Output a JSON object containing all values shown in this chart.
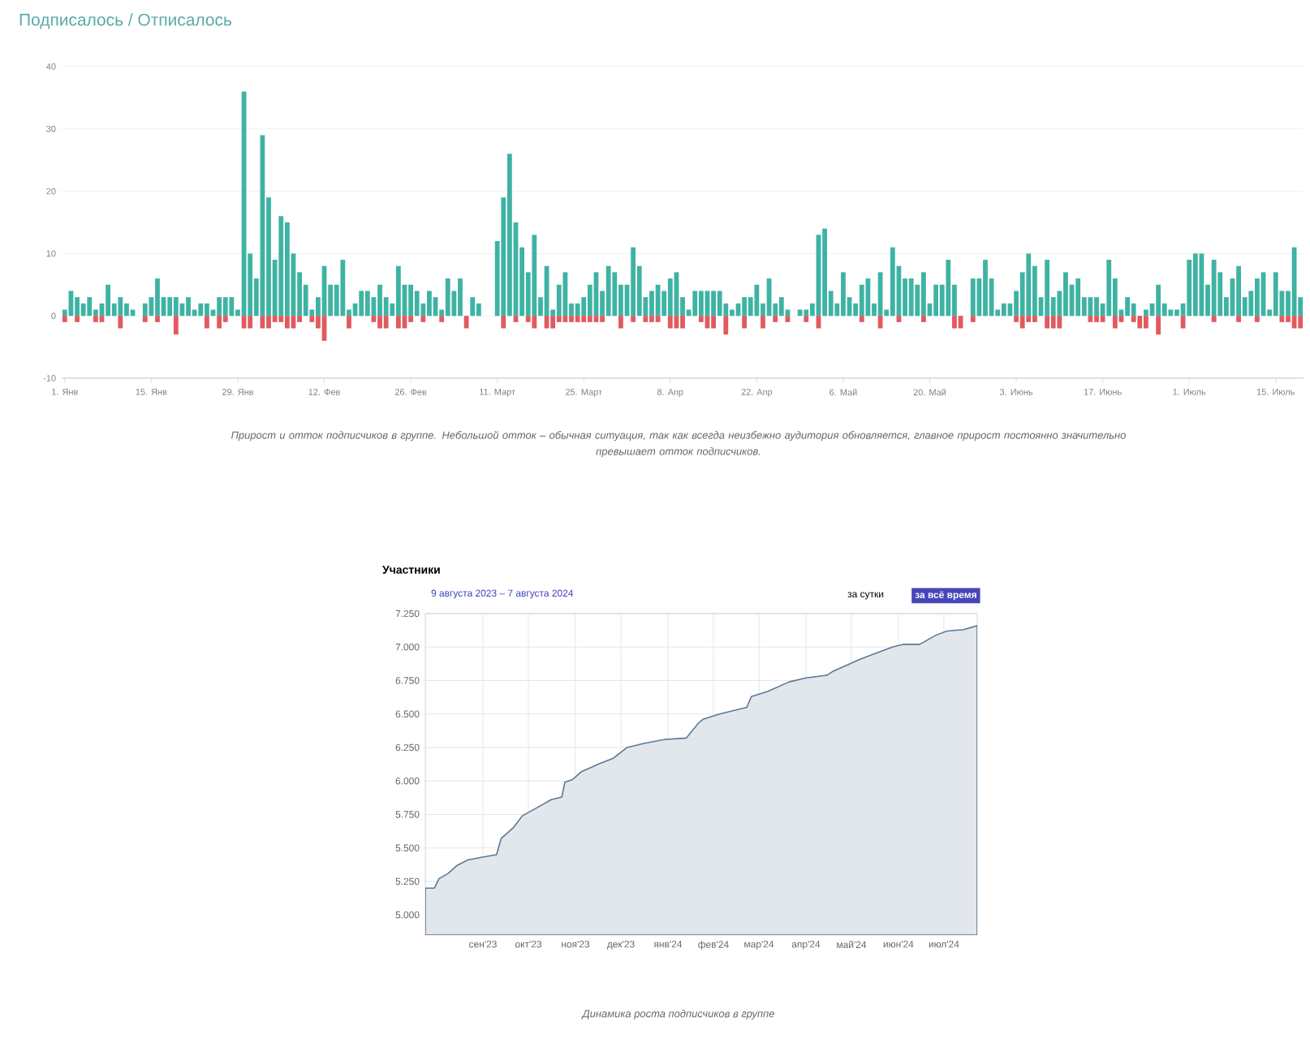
{
  "chart_data": [
    {
      "type": "bar",
      "title": "Подписалось / Отписалось",
      "categories": [
        "1. Янв",
        null,
        null,
        null,
        null,
        null,
        null,
        null,
        null,
        null,
        null,
        null,
        null,
        null,
        "15. Янв",
        null,
        null,
        null,
        null,
        null,
        null,
        null,
        null,
        null,
        null,
        null,
        null,
        null,
        "29. Янв",
        null,
        null,
        null,
        null,
        null,
        null,
        null,
        null,
        null,
        null,
        null,
        null,
        null,
        "12. Фев",
        null,
        null,
        null,
        null,
        null,
        null,
        null,
        null,
        null,
        null,
        null,
        null,
        null,
        "26. Фев",
        null,
        null,
        null,
        null,
        null,
        null,
        null,
        null,
        null,
        null,
        null,
        null,
        null,
        "11. Март",
        null,
        null,
        null,
        null,
        null,
        null,
        null,
        null,
        null,
        null,
        null,
        null,
        null,
        "25. Март",
        null,
        null,
        null,
        null,
        null,
        null,
        null,
        null,
        null,
        null,
        null,
        null,
        null,
        "8. Апр",
        null,
        null,
        null,
        null,
        null,
        null,
        null,
        null,
        null,
        null,
        null,
        null,
        null,
        "22. Апр",
        null,
        null,
        null,
        null,
        null,
        null,
        null,
        null,
        null,
        null,
        null,
        null,
        null,
        "6. Май",
        null,
        null,
        null,
        null,
        null,
        null,
        null,
        null,
        null,
        null,
        null,
        null,
        null,
        "20. Май",
        null,
        null,
        null,
        null,
        null,
        null,
        null,
        null,
        null,
        null,
        null,
        null,
        null,
        "3. Июнь",
        null,
        null,
        null,
        null,
        null,
        null,
        null,
        null,
        null,
        null,
        null,
        null,
        null,
        "17. Июнь",
        null,
        null,
        null,
        null,
        null,
        null,
        null,
        null,
        null,
        null,
        null,
        null,
        null,
        "1. Июль",
        null,
        null,
        null,
        null,
        null,
        null,
        null,
        null,
        null,
        null,
        null,
        null,
        null,
        "15. Июль",
        null,
        null,
        null,
        null
      ],
      "series": [
        {
          "color": "#3fb3a3",
          "values": [
            1,
            4,
            3,
            2,
            3,
            1,
            2,
            5,
            2,
            3,
            2,
            1,
            0,
            2,
            3,
            6,
            3,
            3,
            3,
            2,
            3,
            1,
            2,
            2,
            1,
            3,
            3,
            3,
            1,
            36,
            10,
            6,
            29,
            19,
            9,
            16,
            15,
            10,
            7,
            5,
            1,
            3,
            8,
            5,
            5,
            9,
            1,
            2,
            4,
            4,
            3,
            5,
            3,
            2,
            8,
            5,
            5,
            4,
            2,
            4,
            3,
            1,
            6,
            4,
            6,
            0,
            3,
            2,
            0,
            0,
            12,
            19,
            26,
            15,
            11,
            7,
            13,
            3,
            8,
            1,
            5,
            7,
            2,
            2,
            3,
            5,
            7,
            4,
            8,
            7,
            5,
            5,
            11,
            8,
            3,
            4,
            5,
            4,
            6,
            7,
            3,
            1,
            4,
            4,
            4,
            4,
            4,
            2,
            1,
            2,
            3,
            3,
            5,
            2,
            6,
            2,
            3,
            1,
            0,
            1,
            1,
            2,
            13,
            14,
            4,
            2,
            7,
            3,
            2,
            5,
            6,
            2,
            7,
            1,
            11,
            8,
            6,
            6,
            5,
            7,
            2,
            5,
            5,
            9,
            5,
            0,
            0,
            6,
            6,
            9,
            6,
            1,
            2,
            2,
            4,
            7,
            10,
            8,
            3,
            9,
            3,
            4,
            7,
            5,
            6,
            3,
            3,
            3,
            2,
            9,
            6,
            1,
            3,
            2,
            0,
            1,
            2,
            5,
            2,
            1,
            1,
            2,
            9,
            10,
            10,
            5,
            9,
            7,
            3,
            6,
            8,
            3,
            4,
            6,
            7,
            1,
            7,
            4,
            4,
            11,
            3
          ]
        },
        {
          "color": "#e05a5f",
          "values": [
            -1,
            0,
            -1,
            0,
            0,
            -1,
            -1,
            0,
            0,
            -2,
            0,
            0,
            0,
            -1,
            0,
            -1,
            0,
            0,
            -3,
            0,
            0,
            0,
            0,
            -2,
            0,
            -2,
            -1,
            0,
            0,
            -2,
            -2,
            0,
            -2,
            -2,
            -1,
            -1,
            -2,
            -2,
            -1,
            0,
            -1,
            -2,
            -4,
            0,
            0,
            0,
            -2,
            0,
            0,
            0,
            -1,
            -2,
            -2,
            0,
            -2,
            -2,
            -1,
            0,
            -1,
            0,
            0,
            -1,
            0,
            0,
            0,
            -2,
            0,
            0,
            0,
            0,
            0,
            -2,
            0,
            -1,
            0,
            -1,
            -2,
            0,
            -2,
            -2,
            -1,
            -1,
            -1,
            -1,
            -1,
            -1,
            -1,
            -1,
            0,
            0,
            -2,
            0,
            -1,
            0,
            -1,
            -1,
            -1,
            0,
            -2,
            -2,
            -2,
            0,
            0,
            -1,
            -2,
            -2,
            0,
            -3,
            0,
            0,
            -2,
            0,
            0,
            -2,
            0,
            -1,
            0,
            -1,
            0,
            0,
            -1,
            0,
            -2,
            0,
            0,
            0,
            0,
            0,
            0,
            -1,
            0,
            0,
            -2,
            0,
            0,
            -1,
            0,
            0,
            0,
            -1,
            0,
            0,
            0,
            0,
            -2,
            -2,
            0,
            -1,
            0,
            0,
            0,
            0,
            0,
            0,
            -1,
            -2,
            -1,
            -1,
            0,
            -2,
            -2,
            -2,
            0,
            0,
            0,
            0,
            -1,
            -1,
            -1,
            0,
            -2,
            -1,
            0,
            -1,
            -2,
            -2,
            0,
            -3,
            0,
            0,
            0,
            -2,
            0,
            0,
            0,
            0,
            -1,
            0,
            0,
            0,
            -1,
            0,
            0,
            -1,
            0,
            0,
            0,
            -1,
            -1,
            -2,
            -2
          ]
        }
      ],
      "ylim": [
        -10,
        40
      ],
      "yticks": [
        -10,
        0,
        10,
        20,
        30,
        40
      ],
      "grid": "y",
      "annotations": [
        "Прирост и отток подписчиков в группе. Небольшой отток – обычная ситуация, так как всегда неизбежно аудитория обновляется, главное прирост постоянно значительно превышает отток подписчиков."
      ]
    },
    {
      "type": "area",
      "title": "Участники",
      "subtitle": "9 августа 2023 – 7 августа 2024",
      "color": "#5d7896",
      "x": [
        "2023-08-09",
        "2023-08-15",
        "2023-08-18",
        "2023-08-24",
        "2023-08-30",
        "2023-09-06",
        "2023-09-15",
        "2023-09-25",
        "2023-09-28",
        "2023-10-06",
        "2023-10-12",
        "2023-10-20",
        "2023-10-31",
        "2023-11-07",
        "2023-11-09",
        "2023-11-14",
        "2023-11-20",
        "2023-12-02",
        "2023-12-11",
        "2023-12-20",
        "2023-12-31",
        "2024-01-14",
        "2024-01-28",
        "2024-02-05",
        "2024-02-08",
        "2024-02-19",
        "2024-03-08",
        "2024-03-11",
        "2024-03-22",
        "2024-04-05",
        "2024-04-16",
        "2024-04-30",
        "2024-05-04",
        "2024-05-22",
        "2024-06-12",
        "2024-06-19",
        "2024-06-30",
        "2024-07-11",
        "2024-07-18",
        "2024-07-29",
        "2024-08-07"
      ],
      "values": [
        5200,
        5200,
        5270,
        5310,
        5370,
        5410,
        5430,
        5450,
        5570,
        5650,
        5740,
        5790,
        5860,
        5880,
        5990,
        6010,
        6070,
        6130,
        6170,
        6250,
        6280,
        6310,
        6320,
        6430,
        6460,
        6500,
        6550,
        6630,
        6670,
        6740,
        6770,
        6790,
        6820,
        6910,
        7000,
        7020,
        7020,
        7090,
        7120,
        7130,
        7160
      ],
      "xlim": [
        "2023-08-09",
        "2024-08-07"
      ],
      "ylim": [
        4850,
        7250
      ],
      "yticks": [
        {
          "value": 5000,
          "label": "5.000"
        },
        {
          "value": 5250,
          "label": "5.250"
        },
        {
          "value": 5500,
          "label": "5.500"
        },
        {
          "value": 5750,
          "label": "5.750"
        },
        {
          "value": 6000,
          "label": "6.000"
        },
        {
          "value": 6250,
          "label": "6.250"
        },
        {
          "value": 6500,
          "label": "6.500"
        },
        {
          "value": 6750,
          "label": "6.750"
        },
        {
          "value": 7000,
          "label": "7.000"
        },
        {
          "value": 7250,
          "label": "7.250"
        }
      ],
      "xticks": [
        {
          "value": "2023-09-16",
          "label": "сен'23"
        },
        {
          "value": "2023-10-16",
          "label": "окт'23"
        },
        {
          "value": "2023-11-16",
          "label": "ноя'23"
        },
        {
          "value": "2023-12-16",
          "label": "дек'23"
        },
        {
          "value": "2024-01-16",
          "label": "янв'24"
        },
        {
          "value": "2024-02-15",
          "label": "фев'24"
        },
        {
          "value": "2024-03-16",
          "label": "мар'24"
        },
        {
          "value": "2024-04-16",
          "label": "апр'24"
        },
        {
          "value": "2024-05-16",
          "label": "май'24"
        },
        {
          "value": "2024-06-16",
          "label": "июн'24"
        },
        {
          "value": "2024-07-16",
          "label": "июл'24"
        }
      ],
      "grid": true,
      "annotations": [
        "за сутки",
        "за всё время",
        "Динамика роста подписчиков в группе"
      ]
    }
  ]
}
